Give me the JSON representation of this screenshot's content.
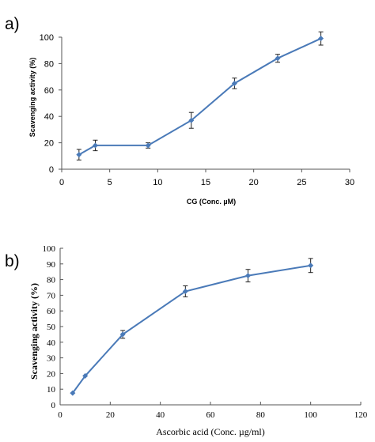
{
  "chart_data": [
    {
      "panel_label": "a)",
      "type": "line",
      "xlabel": "CG (Conc. µM)",
      "ylabel": "Scavenging activity (%)",
      "xlim": [
        0,
        30
      ],
      "ylim": [
        0,
        100
      ],
      "xticks": [
        "0",
        "5",
        "10",
        "15",
        "20",
        "25",
        "30"
      ],
      "yticks": [
        "0",
        "20",
        "40",
        "60",
        "80",
        "100"
      ],
      "grid": false,
      "color": "#4a7ab8",
      "series": [
        {
          "x": [
            1.8,
            3.5,
            9,
            13.5,
            18,
            22.5,
            27
          ],
          "y": [
            11,
            18,
            18,
            37,
            65,
            84,
            99
          ],
          "err": [
            4,
            4,
            2,
            6,
            4,
            3,
            5
          ]
        }
      ]
    },
    {
      "panel_label": "b)",
      "type": "line",
      "xlabel": "Ascorbic acid (Conc. µg/ml)",
      "ylabel": "Scavenging activity (%)",
      "xlim": [
        0,
        120
      ],
      "ylim": [
        0,
        100
      ],
      "xticks": [
        "0",
        "20",
        "40",
        "60",
        "80",
        "100",
        "120"
      ],
      "yticks": [
        "0",
        "10",
        "20",
        "30",
        "40",
        "50",
        "60",
        "70",
        "80",
        "90",
        "100"
      ],
      "grid": false,
      "color": "#4a7ab8",
      "series": [
        {
          "x": [
            5,
            10,
            25,
            50,
            75,
            100
          ],
          "y": [
            7.5,
            18.5,
            45,
            72.5,
            82.5,
            89
          ],
          "err": [
            0,
            0,
            2.5,
            3.5,
            4,
            4.5
          ]
        }
      ]
    }
  ]
}
